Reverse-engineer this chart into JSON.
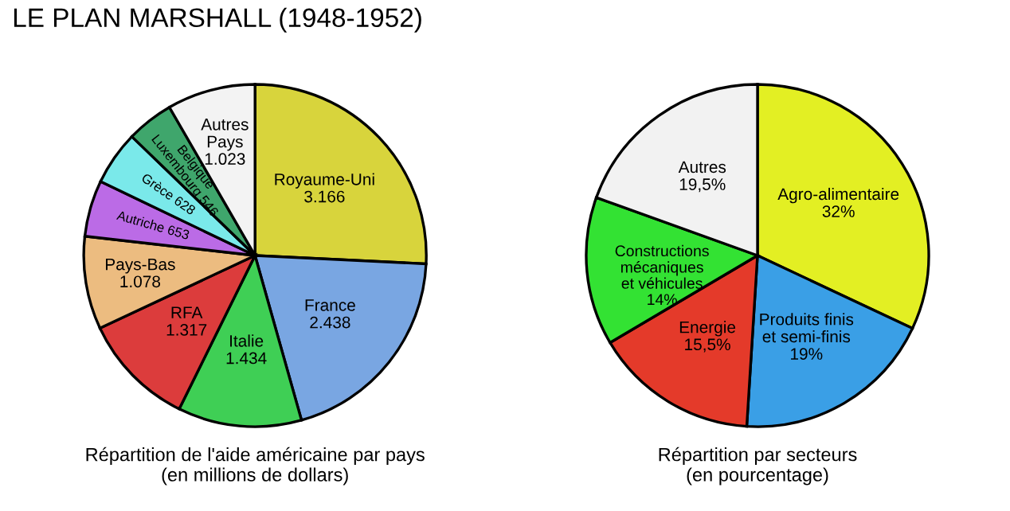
{
  "chart_data": [
    {
      "type": "pie",
      "title": "LE PLAN MARSHALL (1948-1952)",
      "categories": [
        "Royaume-Uni",
        "France",
        "Italie",
        "RFA",
        "Pays-Bas",
        "Autriche",
        "Grèce",
        "Belgique\nLuxembourg",
        "Autres\nPays"
      ],
      "values": [
        3166,
        2438,
        1434,
        1317,
        1078,
        653,
        628,
        546,
        1023
      ],
      "value_labels": [
        "3.166",
        "2.438",
        "1.434",
        "1.317",
        "1.078",
        "653",
        "628",
        "546",
        "1.023"
      ],
      "colors": [
        "#d8d43c",
        "#79a6e2",
        "#3fcf55",
        "#dc3c3c",
        "#ecbc80",
        "#bb6be6",
        "#7ae9ea",
        "#3fa66c",
        "#f3f3f3"
      ],
      "annotations": [
        "Répartition de l'aide américaine par pays\n(en millions de dollars)"
      ]
    },
    {
      "type": "pie",
      "categories": [
        "Agro-alimentaire",
        "Produits finis\net semi-finis",
        "Energie",
        "Constructions\nmécaniques\net véhicules",
        "Autres"
      ],
      "values": [
        32,
        19,
        15.5,
        14,
        19.5
      ],
      "value_labels": [
        "32%",
        "19%",
        "15,5%",
        "14%",
        "19,5%"
      ],
      "colors": [
        "#e3ef23",
        "#3a9fe6",
        "#e43a2a",
        "#33e233",
        "#f2f2f2"
      ],
      "annotations": [
        "Répartition par secteurs\n(en pourcentage)"
      ]
    }
  ]
}
